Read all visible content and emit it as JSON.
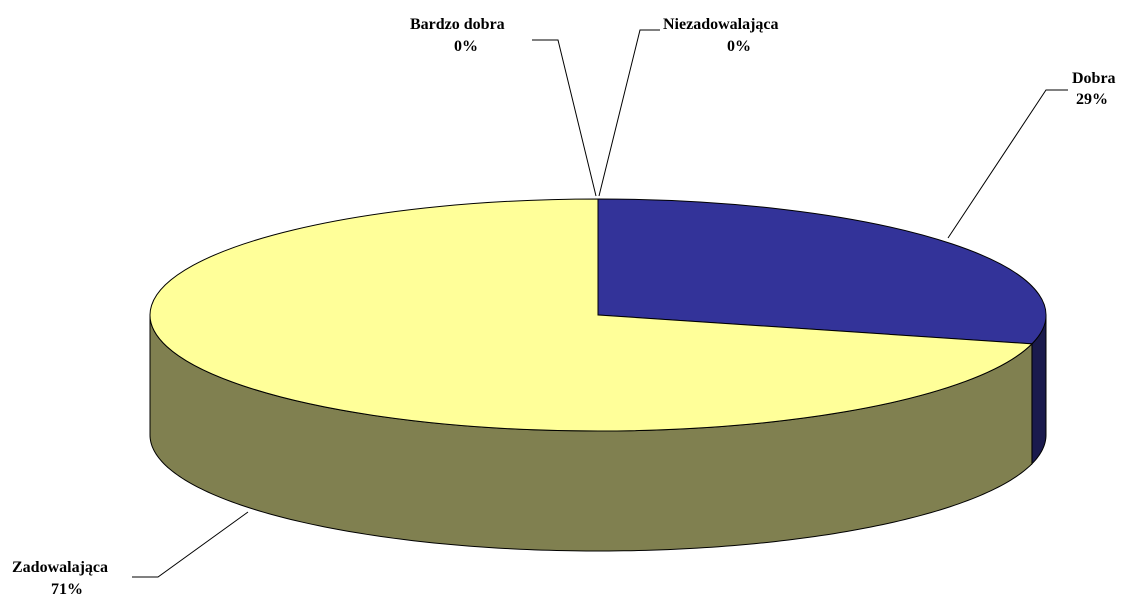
{
  "chart_data": {
    "type": "pie",
    "style": "3d",
    "slices": [
      {
        "label": "Dobra",
        "value": 29,
        "value_label": "29%",
        "top_color": "#333399",
        "side_color": "#1a1a4d"
      },
      {
        "label": "Zadowalająca",
        "value": 71,
        "value_label": "71%",
        "top_color": "#ffff99",
        "side_color": "#808050"
      },
      {
        "label": "Bardzo dobra",
        "value": 0,
        "value_label": "0%",
        "top_color": "#ffffff",
        "side_color": "#ffffff"
      },
      {
        "label": "Niezadowalająca",
        "value": 0,
        "value_label": "0%",
        "top_color": "#ffffff",
        "side_color": "#ffffff"
      }
    ],
    "title": "",
    "legend": "none"
  }
}
